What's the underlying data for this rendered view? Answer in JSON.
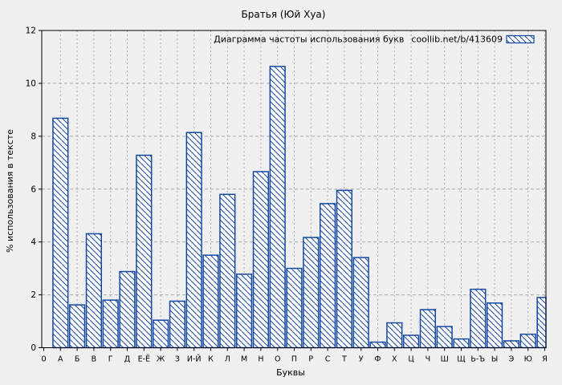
{
  "chart_data": {
    "type": "bar",
    "title": "Братья (Юй Хуа)",
    "legend": {
      "label": "Диаграмма частоты использования букв",
      "source": "coollib.net/b/413609",
      "position": "top-right",
      "swatch": "blue-hatched-box"
    },
    "xlabel": "Буквы",
    "ylabel": "% использования в тексте",
    "origin_label": "0",
    "ylim": [
      0,
      12
    ],
    "ytick_step": 2,
    "grid": true,
    "categories": [
      "А",
      "Б",
      "В",
      "Г",
      "Д",
      "Е-Ё",
      "Ж",
      "З",
      "И-Й",
      "К",
      "Л",
      "М",
      "Н",
      "О",
      "П",
      "Р",
      "С",
      "Т",
      "У",
      "Ф",
      "Х",
      "Ц",
      "Ч",
      "Ш",
      "Щ",
      "Ь-Ъ",
      "Ы",
      "Э",
      "Ю",
      "Я"
    ],
    "values": [
      8.68,
      1.62,
      4.31,
      1.8,
      2.88,
      7.28,
      1.04,
      1.76,
      8.14,
      3.5,
      5.8,
      2.78,
      6.66,
      10.64,
      3.0,
      4.17,
      5.45,
      5.95,
      3.41,
      0.21,
      0.94,
      0.47,
      1.44,
      0.8,
      0.33,
      2.21,
      1.69,
      0.26,
      0.51,
      1.9
    ],
    "colors": {
      "bar_line": "#1547a0",
      "bar_fill": "#fcfcfd",
      "grid": "#ababab",
      "border": "#000000",
      "background": "#f0f0f0",
      "text": "#000000"
    }
  }
}
